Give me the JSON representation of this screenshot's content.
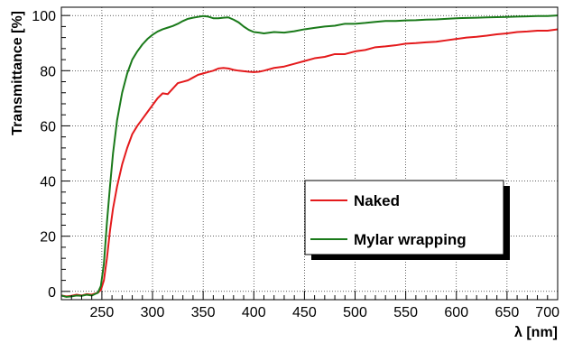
{
  "chart_data": {
    "type": "line",
    "xlabel": "λ [nm]",
    "ylabel": "Transmittance [%]",
    "xlim": [
      210,
      700
    ],
    "ylim": [
      -3,
      103
    ],
    "x_ticks": [
      250,
      300,
      350,
      400,
      450,
      500,
      550,
      600,
      650,
      700
    ],
    "y_ticks": [
      0,
      20,
      40,
      60,
      80,
      100
    ],
    "grid": true,
    "legend_position": "bottom-right",
    "series": [
      {
        "name": "Naked",
        "color": "#e41a1c",
        "x": [
          210,
          215,
          220,
          225,
          230,
          235,
          240,
          243,
          246,
          249,
          252,
          255,
          258,
          261,
          265,
          270,
          275,
          280,
          285,
          290,
          295,
          300,
          305,
          310,
          315,
          320,
          325,
          330,
          335,
          340,
          345,
          350,
          355,
          360,
          365,
          370,
          375,
          380,
          385,
          390,
          395,
          400,
          405,
          410,
          420,
          430,
          440,
          450,
          460,
          470,
          480,
          490,
          500,
          510,
          520,
          530,
          540,
          550,
          560,
          570,
          580,
          590,
          600,
          610,
          620,
          630,
          640,
          650,
          660,
          670,
          680,
          690,
          700
        ],
        "values": [
          -1.5,
          -1.8,
          -1.6,
          -1.2,
          -1.5,
          -1.0,
          -1.2,
          -0.8,
          -0.5,
          0.5,
          4,
          12,
          22,
          30,
          38,
          46,
          52,
          57,
          60,
          62.5,
          65,
          67.5,
          70,
          71.8,
          71.5,
          73.5,
          75.5,
          76,
          76.5,
          77.5,
          78.5,
          79,
          79.5,
          80,
          80.8,
          81,
          80.8,
          80.3,
          80,
          79.8,
          79.6,
          79.5,
          79.6,
          80,
          81,
          81.5,
          82.5,
          83.5,
          84.5,
          85,
          86,
          86,
          87,
          87.5,
          88.5,
          88.8,
          89.2,
          89.8,
          90,
          90.3,
          90.5,
          91,
          91.5,
          92,
          92.3,
          92.7,
          93.2,
          93.5,
          94,
          94.2,
          94.5,
          94.5,
          95
        ]
      },
      {
        "name": "Mylar wrapping",
        "color": "#1a7a1a",
        "x": [
          210,
          215,
          220,
          225,
          230,
          235,
          240,
          243,
          246,
          249,
          252,
          255,
          258,
          261,
          265,
          270,
          275,
          280,
          285,
          290,
          295,
          300,
          305,
          310,
          315,
          320,
          325,
          330,
          335,
          340,
          345,
          350,
          355,
          360,
          365,
          370,
          375,
          380,
          385,
          390,
          395,
          400,
          405,
          410,
          420,
          430,
          440,
          450,
          460,
          470,
          480,
          490,
          500,
          510,
          520,
          530,
          540,
          550,
          560,
          570,
          580,
          590,
          600,
          610,
          620,
          630,
          640,
          650,
          660,
          670,
          680,
          690,
          700
        ],
        "values": [
          -1.5,
          -2.0,
          -1.8,
          -1.5,
          -1.6,
          -1.2,
          -1.5,
          -1.0,
          -0.5,
          2,
          10,
          25,
          38,
          50,
          62,
          72,
          79,
          84,
          87,
          89.5,
          91.5,
          93,
          94.2,
          95,
          95.6,
          96.2,
          97,
          98,
          98.8,
          99.2,
          99.5,
          99.8,
          99.6,
          99,
          99,
          99.2,
          99.3,
          98.5,
          97.5,
          96,
          94.8,
          94,
          93.8,
          93.5,
          94,
          93.8,
          94.3,
          95,
          95.5,
          96,
          96.3,
          97,
          97,
          97.3,
          97.7,
          98,
          98,
          98.2,
          98.3,
          98.5,
          98.6,
          98.8,
          99,
          99.1,
          99.2,
          99.3,
          99.4,
          99.5,
          99.6,
          99.7,
          99.8,
          99.8,
          100
        ]
      }
    ]
  }
}
